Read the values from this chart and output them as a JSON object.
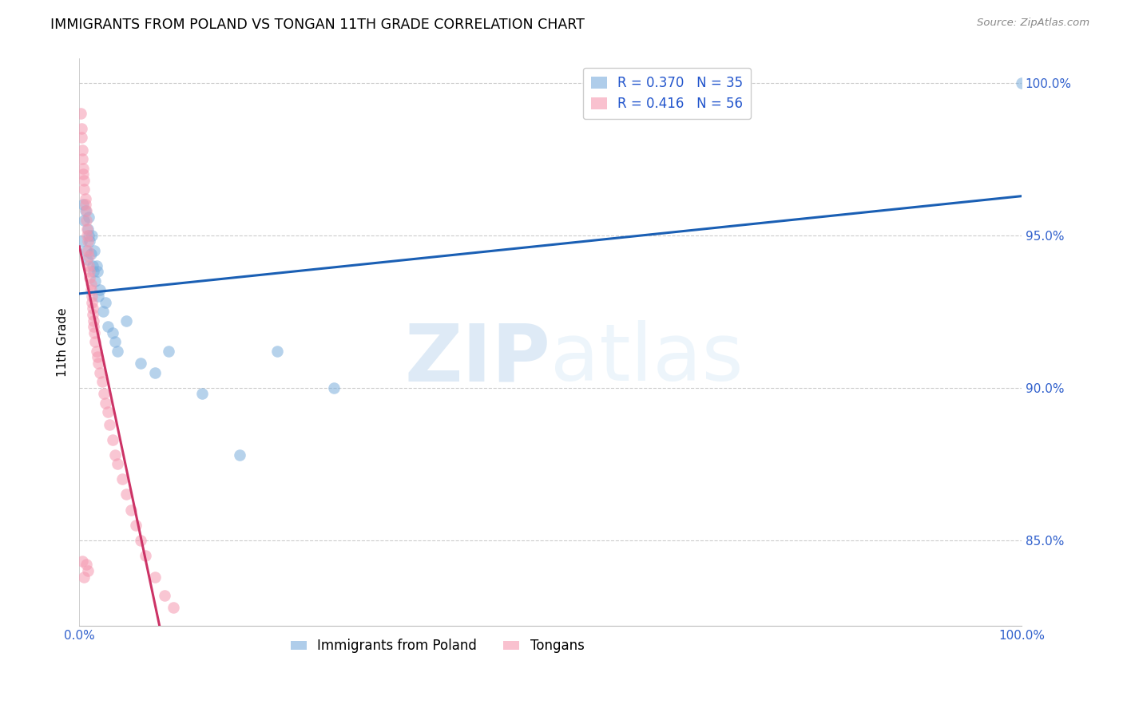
{
  "title": "IMMIGRANTS FROM POLAND VS TONGAN 11TH GRADE CORRELATION CHART",
  "source_text": "Source: ZipAtlas.com",
  "ylabel": "11th Grade",
  "r_poland": 0.37,
  "n_poland": 35,
  "r_tongan": 0.416,
  "n_tongan": 56,
  "color_poland": "#7aaddc",
  "color_tongan": "#f598b0",
  "color_trendline_poland": "#1a5fb4",
  "color_trendline_tongan": "#cc3366",
  "ytick_labels": [
    "85.0%",
    "90.0%",
    "95.0%",
    "100.0%"
  ],
  "ytick_values": [
    0.85,
    0.9,
    0.95,
    1.0
  ],
  "xlim": [
    0.0,
    1.0
  ],
  "ylim": [
    0.822,
    1.008
  ],
  "poland_x": [
    0.002,
    0.004,
    0.005,
    0.006,
    0.007,
    0.008,
    0.009,
    0.01,
    0.01,
    0.011,
    0.012,
    0.013,
    0.014,
    0.015,
    0.016,
    0.017,
    0.018,
    0.019,
    0.02,
    0.022,
    0.025,
    0.028,
    0.03,
    0.035,
    0.038,
    0.04,
    0.05,
    0.065,
    0.08,
    0.095,
    0.13,
    0.17,
    0.21,
    0.27,
    1.0
  ],
  "poland_y": [
    0.948,
    0.96,
    0.955,
    0.958,
    0.945,
    0.942,
    0.952,
    0.95,
    0.956,
    0.948,
    0.944,
    0.95,
    0.94,
    0.938,
    0.945,
    0.935,
    0.94,
    0.938,
    0.93,
    0.932,
    0.925,
    0.928,
    0.92,
    0.918,
    0.915,
    0.912,
    0.922,
    0.908,
    0.905,
    0.912,
    0.898,
    0.878,
    0.912,
    0.9,
    1.0
  ],
  "tongan_x": [
    0.001,
    0.002,
    0.002,
    0.003,
    0.003,
    0.004,
    0.004,
    0.005,
    0.005,
    0.006,
    0.006,
    0.007,
    0.007,
    0.008,
    0.008,
    0.009,
    0.009,
    0.01,
    0.01,
    0.011,
    0.011,
    0.012,
    0.012,
    0.013,
    0.013,
    0.014,
    0.014,
    0.015,
    0.015,
    0.016,
    0.017,
    0.018,
    0.019,
    0.02,
    0.022,
    0.024,
    0.026,
    0.028,
    0.03,
    0.032,
    0.035,
    0.038,
    0.04,
    0.045,
    0.05,
    0.055,
    0.06,
    0.065,
    0.07,
    0.08,
    0.09,
    0.1,
    0.003,
    0.005,
    0.007,
    0.009
  ],
  "tongan_y": [
    0.99,
    0.985,
    0.982,
    0.978,
    0.975,
    0.972,
    0.97,
    0.968,
    0.965,
    0.962,
    0.96,
    0.958,
    0.955,
    0.952,
    0.95,
    0.948,
    0.945,
    0.943,
    0.94,
    0.938,
    0.936,
    0.934,
    0.932,
    0.93,
    0.928,
    0.926,
    0.924,
    0.922,
    0.92,
    0.918,
    0.915,
    0.912,
    0.91,
    0.908,
    0.905,
    0.902,
    0.898,
    0.895,
    0.892,
    0.888,
    0.883,
    0.878,
    0.875,
    0.87,
    0.865,
    0.86,
    0.855,
    0.85,
    0.845,
    0.838,
    0.832,
    0.828,
    0.843,
    0.838,
    0.842,
    0.84
  ],
  "trendline_x_start": 0.0,
  "trendline_x_end": 1.0,
  "title_fontsize": 12.5,
  "axis_label_fontsize": 11,
  "tick_fontsize": 11,
  "legend_fontsize": 12
}
